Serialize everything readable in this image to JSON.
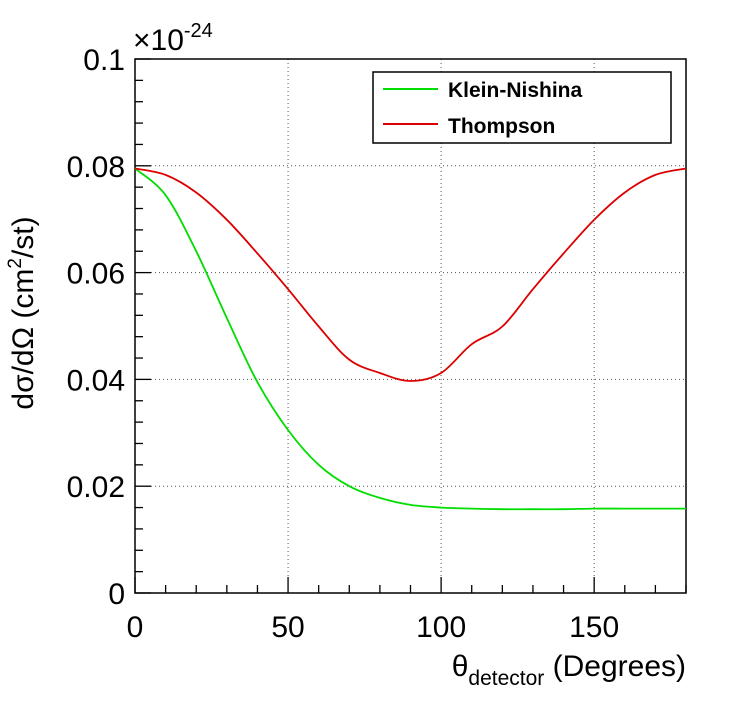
{
  "chart_data": {
    "type": "line",
    "xlabel": {
      "symbol": "θ",
      "subscript": "detector",
      "rest": " (Degrees)"
    },
    "ylabel": {
      "prefix": "dσ/dΩ (cm",
      "sup": "2",
      "suffix": "/st)"
    },
    "multiplier": {
      "base": "×10",
      "exponent": "-24"
    },
    "xlim": [
      0,
      180
    ],
    "ylim": [
      0,
      0.1
    ],
    "x_ticks": [
      0,
      50,
      100,
      150
    ],
    "x_tick_labels": [
      "0",
      "50",
      "100",
      "150"
    ],
    "y_ticks": [
      0,
      0.02,
      0.04,
      0.06,
      0.08,
      0.1
    ],
    "y_tick_labels": [
      "0",
      "0.02",
      "0.04",
      "0.06",
      "0.08",
      "0.1"
    ],
    "grid": true,
    "legend_position": "top-right",
    "series": [
      {
        "name": "Klein-Nishina",
        "color": "#00dd00",
        "x": [
          0,
          10,
          20,
          30,
          40,
          50,
          60,
          70,
          80,
          90,
          100,
          110,
          120,
          130,
          140,
          150,
          160,
          170,
          180
        ],
        "y": [
          0.0795,
          0.0745,
          0.064,
          0.0515,
          0.0395,
          0.0305,
          0.024,
          0.02,
          0.0178,
          0.0165,
          0.016,
          0.0158,
          0.0157,
          0.0157,
          0.0157,
          0.0158,
          0.0158,
          0.0158,
          0.0158
        ]
      },
      {
        "name": "Thompson",
        "color": "#dd0000",
        "x": [
          0,
          10,
          20,
          30,
          40,
          50,
          60,
          70,
          80,
          90,
          100,
          110,
          120,
          130,
          140,
          150,
          160,
          170,
          180
        ],
        "y": [
          0.0795,
          0.0783,
          0.075,
          0.0699,
          0.0636,
          0.0569,
          0.0499,
          0.0437,
          0.0412,
          0.0397,
          0.0412,
          0.0466,
          0.0499,
          0.0569,
          0.0636,
          0.0699,
          0.075,
          0.0783,
          0.0795
        ]
      }
    ]
  }
}
